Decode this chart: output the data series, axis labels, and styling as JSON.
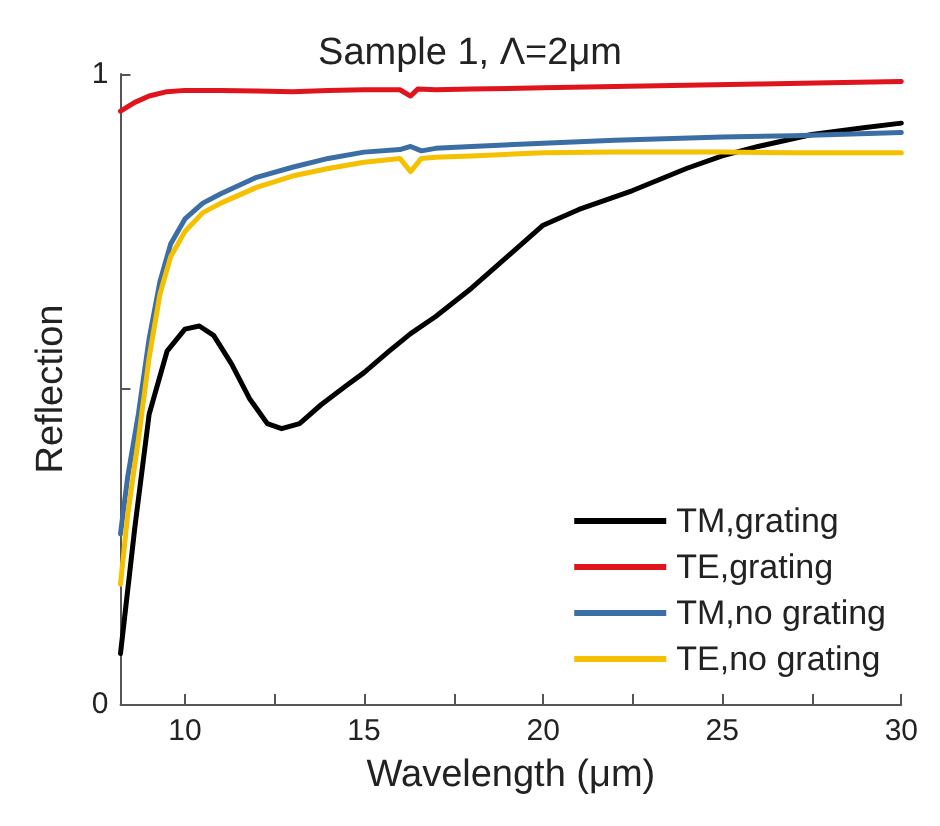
{
  "chart_data": {
    "type": "line",
    "title": "Sample 1, Λ=2μm",
    "xlabel": "Wavelength (μm)",
    "ylabel": "Reflection",
    "xlim": [
      8.2,
      30
    ],
    "xticks": [
      10,
      {
        "value": 12.5,
        "label": null
      },
      15,
      {
        "value": 17.5,
        "label": null
      },
      20,
      {
        "value": 22.5,
        "label": null
      },
      25,
      {
        "value": 27.5,
        "label": null
      },
      30
    ],
    "ylim": [
      0,
      1
    ],
    "yticks": [
      0,
      {
        "value": 0.5,
        "label": null
      },
      1
    ],
    "legend": "bottom right",
    "grid": false,
    "marker": "none",
    "line_style": "solid",
    "series": [
      {
        "name": "TM,grating",
        "color": "#000000",
        "x": [
          8.2,
          8.6,
          9,
          9.5,
          10,
          10.4,
          10.8,
          11.3,
          11.8,
          12.3,
          12.7,
          13.2,
          13.8,
          14.5,
          15,
          15.7,
          16.3,
          17,
          18,
          19,
          20,
          21,
          22.5,
          24,
          25,
          26,
          27.5,
          29,
          30
        ],
        "values": [
          0.08,
          0.28,
          0.46,
          0.56,
          0.595,
          0.6,
          0.585,
          0.54,
          0.485,
          0.445,
          0.437,
          0.445,
          0.475,
          0.505,
          0.526,
          0.56,
          0.588,
          0.615,
          0.66,
          0.71,
          0.76,
          0.785,
          0.815,
          0.85,
          0.87,
          0.885,
          0.904,
          0.915,
          0.922
        ]
      },
      {
        "name": "TE,grating",
        "color": "#e0141c",
        "x": [
          8.2,
          8.6,
          9,
          9.5,
          10,
          11,
          12,
          13,
          14,
          15,
          16,
          16.3,
          16.5,
          17,
          18,
          20,
          22,
          24,
          26,
          28,
          30
        ],
        "values": [
          0.941,
          0.955,
          0.965,
          0.972,
          0.974,
          0.974,
          0.973,
          0.972,
          0.974,
          0.975,
          0.975,
          0.965,
          0.976,
          0.975,
          0.976,
          0.978,
          0.98,
          0.982,
          0.984,
          0.986,
          0.988
        ]
      },
      {
        "name": "TM,no grating",
        "color": "#3b6ea5",
        "x": [
          8.2,
          8.4,
          8.7,
          9,
          9.3,
          9.6,
          10,
          10.5,
          11,
          12,
          13,
          14,
          15,
          16,
          16.3,
          16.6,
          17,
          18,
          20,
          22,
          25,
          27,
          30
        ],
        "values": [
          0.27,
          0.36,
          0.46,
          0.58,
          0.67,
          0.73,
          0.77,
          0.795,
          0.81,
          0.836,
          0.852,
          0.866,
          0.876,
          0.88,
          0.885,
          0.878,
          0.882,
          0.885,
          0.89,
          0.895,
          0.9,
          0.902,
          0.907
        ]
      },
      {
        "name": "TE,no grating",
        "color": "#f5c000",
        "x": [
          8.2,
          8.4,
          8.7,
          9,
          9.3,
          9.6,
          10,
          10.5,
          11,
          12,
          13,
          14,
          15,
          16,
          16.3,
          16.6,
          17,
          18,
          20,
          22,
          25,
          27,
          30
        ],
        "values": [
          0.19,
          0.3,
          0.42,
          0.55,
          0.65,
          0.71,
          0.75,
          0.78,
          0.795,
          0.82,
          0.838,
          0.85,
          0.86,
          0.866,
          0.845,
          0.866,
          0.868,
          0.87,
          0.875,
          0.876,
          0.876,
          0.875,
          0.875
        ]
      }
    ]
  }
}
